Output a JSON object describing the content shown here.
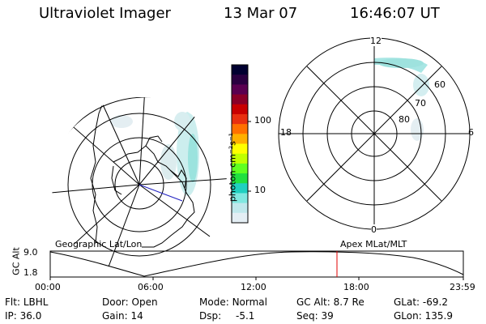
{
  "header": {
    "instrument": "Ultraviolet Imager",
    "date": "13 Mar 07",
    "time": "16:46:07 UT"
  },
  "geo_map": {
    "caption": "Geographic Lat/Lon"
  },
  "polar_plot": {
    "caption": "Apex MLat/MLT",
    "mlt_labels": {
      "top": "12",
      "right": "6",
      "bottom": "0",
      "left": "18"
    },
    "lat_labels": [
      "60",
      "70",
      "80"
    ]
  },
  "colorbar": {
    "unit_label": "photon cm⁻²s⁻¹",
    "tick_labels": [
      "100",
      "10"
    ],
    "colors": [
      "#000030",
      "#2a0040",
      "#5a0050",
      "#8a0028",
      "#c80000",
      "#e83010",
      "#ff7000",
      "#ffb000",
      "#ffff00",
      "#c0ff00",
      "#60ff20",
      "#20e040",
      "#20d0c0",
      "#80e8e0",
      "#c0e8ec",
      "#e4eef4"
    ]
  },
  "orbit_panel": {
    "ylabel": "GC Alt",
    "ytick_top": "9.0",
    "ytick_bottom": "1.8",
    "xticks": [
      "00:00",
      "06:00",
      "12:00",
      "18:00",
      "23:59"
    ],
    "marker_color": "#e00000"
  },
  "info": {
    "flt_label": "Flt:",
    "flt_value": "LBHL",
    "ip_label": "IP:",
    "ip_value": "36.0",
    "door_label": "Door:",
    "door_value": "Open",
    "gain_label": "Gain:",
    "gain_value": "14",
    "mode_label": "Mode:",
    "mode_value": "Normal",
    "dsp_label": "Dsp:",
    "dsp_value": "-5.1",
    "gcalt_label": "GC Alt:",
    "gcalt_value": "8.7 Re",
    "seq_label": "Seq:",
    "seq_value": "39",
    "glat_label": "GLat:",
    "glat_value": "-69.2",
    "glon_label": "GLon:",
    "glon_value": "135.9"
  }
}
